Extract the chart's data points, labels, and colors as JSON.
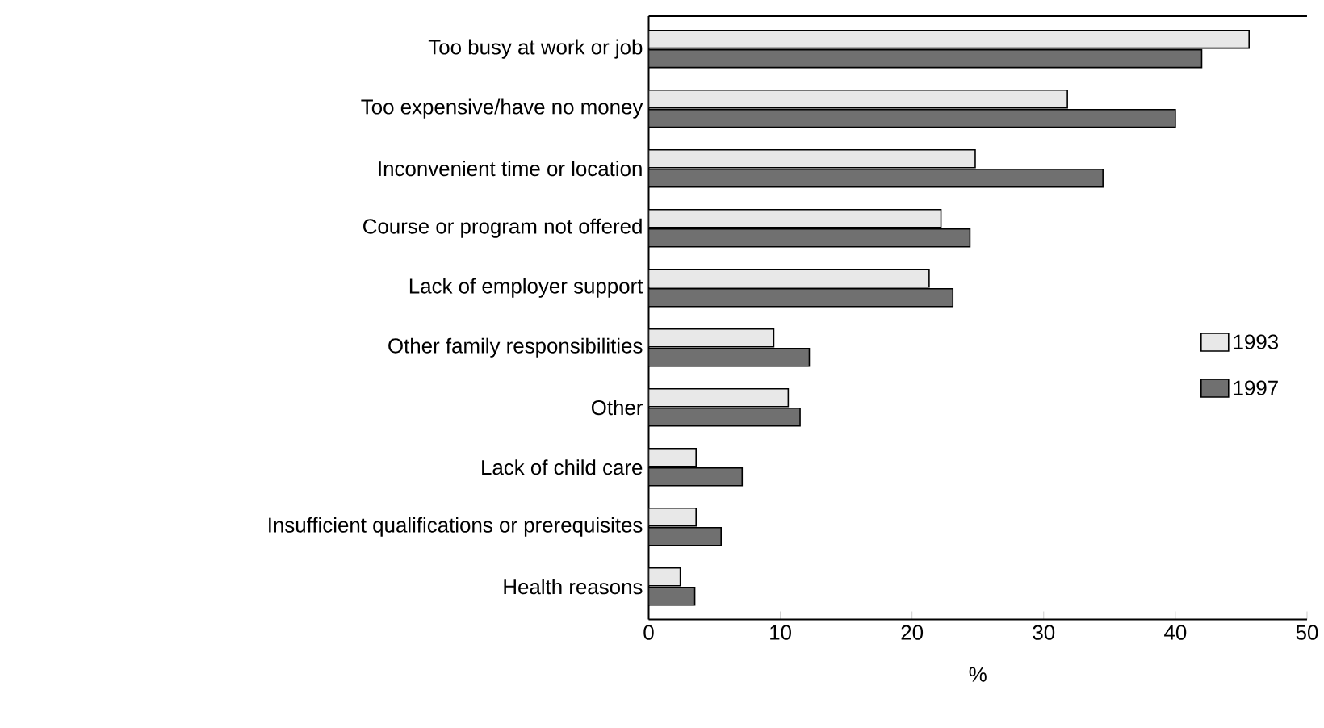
{
  "chart_data": {
    "type": "bar",
    "orientation": "horizontal",
    "xlabel": "%",
    "categories": [
      "Too busy at work or job",
      "Too expensive/have no money",
      "Inconvenient time or location",
      "Course or program not offered",
      "Lack of employer support",
      "Other family responsibilities",
      "Other",
      "Lack of child care",
      "Insufficient qualifications or prerequisites",
      "Health reasons"
    ],
    "series": [
      {
        "name": "1993",
        "color": "#e8e8e8",
        "values": [
          45.6,
          31.8,
          24.8,
          22.2,
          21.3,
          9.5,
          10.6,
          3.6,
          3.6,
          2.4
        ]
      },
      {
        "name": "1997",
        "color": "#707070",
        "values": [
          42.0,
          40.0,
          34.5,
          24.4,
          23.1,
          12.2,
          11.5,
          7.1,
          5.5,
          3.5
        ]
      }
    ],
    "xlim": [
      0,
      50
    ],
    "xticks": [
      0,
      10,
      20,
      30,
      40,
      50
    ],
    "grid": false,
    "legend": "right"
  }
}
